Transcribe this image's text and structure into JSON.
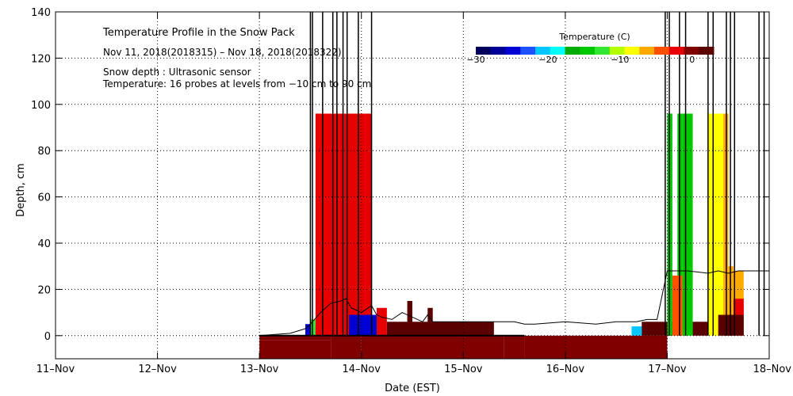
{
  "chart_data": {
    "type": "heatmap",
    "title": "Temperature Profile in the Snow Pack",
    "subtitle": "Nov 11, 2018(2018315) – Nov 18, 2018(2018322)",
    "notes": [
      "Snow depth : Ultrasonic sensor",
      "Temperature: 16 probes at levels from −10 cm to 90 cm"
    ],
    "xlabel": "Date (EST)",
    "ylabel": "Depth, cm",
    "x_ticks": [
      "11–Nov",
      "12–Nov",
      "13–Nov",
      "14–Nov",
      "15–Nov",
      "16–Nov",
      "17–Nov",
      "18–Nov"
    ],
    "y_ticks": [
      0,
      20,
      40,
      60,
      80,
      100,
      120,
      140
    ],
    "xlim": [
      0,
      7
    ],
    "ylim": [
      -10,
      140
    ],
    "grid": true,
    "colorbar": {
      "title": "Temperature (C)",
      "range": [
        -30,
        3
      ],
      "tick_values": [
        -30,
        -20,
        -10,
        0
      ],
      "tick_labels": [
        "−30",
        "−20",
        "−10",
        "0"
      ],
      "colors": [
        "#00005a",
        "#000096",
        "#0000d2",
        "#1e50ff",
        "#00c8ff",
        "#00ffff",
        "#00aa00",
        "#00c800",
        "#32e632",
        "#b4ff00",
        "#ffff00",
        "#ffaa00",
        "#ff5000",
        "#e60000",
        "#800000",
        "#5a0000"
      ]
    },
    "temperature_blocks": [
      {
        "x0": 2.0,
        "x1": 2.7,
        "y0": -10,
        "y1": -2,
        "temp": -0.5
      },
      {
        "x0": 2.0,
        "x1": 2.7,
        "y0": -2,
        "y1": 0,
        "temp": -1
      },
      {
        "x0": 2.7,
        "x1": 3.0,
        "y0": -10,
        "y1": 0,
        "temp": -0.5
      },
      {
        "x0": 3.0,
        "x1": 4.4,
        "y0": -10,
        "y1": 0,
        "temp": -0.5
      },
      {
        "x0": 4.4,
        "x1": 4.6,
        "y0": -10,
        "y1": 0,
        "temp": -0.5
      },
      {
        "x0": 4.6,
        "x1": 6.0,
        "y0": -10,
        "y1": 0,
        "temp": -0.5
      },
      {
        "x0": 2.45,
        "x1": 2.5,
        "y0": 0,
        "y1": 5,
        "temp": -25
      },
      {
        "x0": 2.5,
        "x1": 2.55,
        "y0": 0,
        "y1": 7,
        "temp": -12
      },
      {
        "x0": 2.55,
        "x1": 2.75,
        "y0": 0,
        "y1": 96,
        "temp": -1.5
      },
      {
        "x0": 2.75,
        "x1": 2.78,
        "y0": 0,
        "y1": 96,
        "temp": -2.5
      },
      {
        "x0": 2.78,
        "x1": 2.83,
        "y0": 0,
        "y1": 96,
        "temp": -1.5
      },
      {
        "x0": 2.83,
        "x1": 3.1,
        "y0": 0,
        "y1": 96,
        "temp": -3
      },
      {
        "x0": 2.88,
        "x1": 3.15,
        "y0": 0,
        "y1": 9,
        "temp": -25
      },
      {
        "x0": 3.15,
        "x1": 3.25,
        "y0": 0,
        "y1": 12,
        "temp": -2.5
      },
      {
        "x0": 3.25,
        "x1": 4.3,
        "y0": 0,
        "y1": 6,
        "temp": 2
      },
      {
        "x0": 3.45,
        "x1": 3.5,
        "y0": 0,
        "y1": 15,
        "temp": 2
      },
      {
        "x0": 3.65,
        "x1": 3.7,
        "y0": 0,
        "y1": 12,
        "temp": 2
      },
      {
        "x0": 5.65,
        "x1": 5.75,
        "y0": 0,
        "y1": 4,
        "temp": -20
      },
      {
        "x0": 5.75,
        "x1": 6.05,
        "y0": 0,
        "y1": 6,
        "temp": 2
      },
      {
        "x0": 6.0,
        "x1": 6.05,
        "y0": 0,
        "y1": 96,
        "temp": -14
      },
      {
        "x0": 6.1,
        "x1": 6.15,
        "y0": 0,
        "y1": 96,
        "temp": -14
      },
      {
        "x0": 6.15,
        "x1": 6.25,
        "y0": 0,
        "y1": 96,
        "temp": -14
      },
      {
        "x0": 6.05,
        "x1": 6.15,
        "y0": 0,
        "y1": 26,
        "temp": -5
      },
      {
        "x0": 6.25,
        "x1": 6.4,
        "y0": 0,
        "y1": 6,
        "temp": 2
      },
      {
        "x0": 6.4,
        "x1": 6.55,
        "y0": 0,
        "y1": 96,
        "temp": -8
      },
      {
        "x0": 6.55,
        "x1": 6.6,
        "y0": 0,
        "y1": 96,
        "temp": -7
      },
      {
        "x0": 6.6,
        "x1": 6.65,
        "y0": 0,
        "y1": 30,
        "temp": -7
      },
      {
        "x0": 6.65,
        "x1": 6.75,
        "y0": 0,
        "y1": 28,
        "temp": -6
      },
      {
        "x0": 6.5,
        "x1": 6.75,
        "y0": 0,
        "y1": 9,
        "temp": 2
      },
      {
        "x0": 6.65,
        "x1": 6.75,
        "y0": 9,
        "y1": 16,
        "temp": -3
      }
    ],
    "snow_depth": {
      "x": [
        2.0,
        2.3,
        2.45,
        2.5,
        2.6,
        2.65,
        2.7,
        2.8,
        2.85,
        2.9,
        3.0,
        3.1,
        3.15,
        3.2,
        3.3,
        3.4,
        3.5,
        3.6,
        3.65,
        3.7,
        3.8,
        3.9,
        4.0,
        4.2,
        4.4,
        4.5,
        4.6,
        4.7,
        5.0,
        5.3,
        5.5,
        5.6,
        5.7,
        5.8,
        5.9,
        6.0,
        6.2,
        6.4,
        6.5,
        6.6,
        6.7,
        6.8,
        6.9,
        7.0
      ],
      "y": [
        0,
        1,
        3,
        5,
        10,
        12,
        14,
        15,
        16,
        12,
        10,
        13,
        9,
        8,
        7,
        10,
        8,
        6,
        9,
        6,
        6,
        6,
        6,
        6,
        6,
        6,
        5,
        5,
        6,
        5,
        6,
        6,
        6,
        7,
        7,
        28,
        28,
        27,
        28,
        27,
        28,
        28,
        28,
        28
      ]
    },
    "spike_x": [
      2.5,
      2.52,
      2.62,
      2.72,
      2.76,
      2.82,
      2.86,
      2.97,
      3.1,
      5.98,
      6.02,
      6.12,
      6.18,
      6.4,
      6.45,
      6.58,
      6.62,
      6.66,
      6.9,
      6.95
    ]
  }
}
